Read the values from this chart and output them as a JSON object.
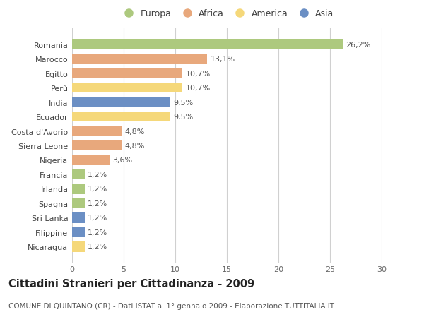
{
  "categories": [
    "Romania",
    "Marocco",
    "Egitto",
    "Perù",
    "India",
    "Ecuador",
    "Costa d'Avorio",
    "Sierra Leone",
    "Nigeria",
    "Francia",
    "Irlanda",
    "Spagna",
    "Sri Lanka",
    "Filippine",
    "Nicaragua"
  ],
  "values": [
    26.2,
    13.1,
    10.7,
    10.7,
    9.5,
    9.5,
    4.8,
    4.8,
    3.6,
    1.2,
    1.2,
    1.2,
    1.2,
    1.2,
    1.2
  ],
  "labels": [
    "26,2%",
    "13,1%",
    "10,7%",
    "10,7%",
    "9,5%",
    "9,5%",
    "4,8%",
    "4,8%",
    "3,6%",
    "1,2%",
    "1,2%",
    "1,2%",
    "1,2%",
    "1,2%",
    "1,2%"
  ],
  "continents": [
    "Europa",
    "Africa",
    "Africa",
    "America",
    "Asia",
    "America",
    "Africa",
    "Africa",
    "Africa",
    "Europa",
    "Europa",
    "Europa",
    "Asia",
    "Asia",
    "America"
  ],
  "colors": {
    "Europa": "#adc97e",
    "Africa": "#e8a87c",
    "America": "#f5d87a",
    "Asia": "#6b8fc4"
  },
  "xlim": [
    0,
    30
  ],
  "xticks": [
    0,
    5,
    10,
    15,
    20,
    25,
    30
  ],
  "title": "Cittadini Stranieri per Cittadinanza - 2009",
  "subtitle": "COMUNE DI QUINTANO (CR) - Dati ISTAT al 1° gennaio 2009 - Elaborazione TUTTITALIA.IT",
  "background_color": "#ffffff",
  "grid_color": "#d0d0d0",
  "bar_height": 0.7,
  "label_fontsize": 8.0,
  "tick_fontsize": 8.0,
  "title_fontsize": 10.5,
  "subtitle_fontsize": 7.5
}
